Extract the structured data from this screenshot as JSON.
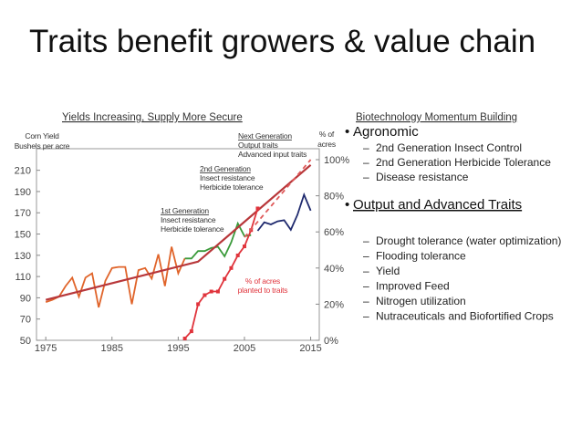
{
  "slide": {
    "title": "Traits benefit growers & value chain",
    "right_title": "Biotechnology Momentum Building",
    "sections": [
      {
        "heading": "Agronomic",
        "items": [
          "2nd Generation Insect Control",
          "2nd Generation Herbicide Tolerance",
          "Disease resistance"
        ]
      },
      {
        "heading": "Output and Advanced Traits",
        "items": [
          "Drought tolerance  (water optimization)",
          "Flooding tolerance",
          "Yield",
          "Improved Feed",
          "Nitrogen utilization",
          "Nutraceuticals and Biofortified Crops"
        ]
      }
    ]
  },
  "chart_data": {
    "type": "line",
    "title": "Yields Increasing, Supply More Secure",
    "ylabel": [
      "Corn Yield",
      "Bushels per acre"
    ],
    "y2label": [
      "% of",
      "acres"
    ],
    "xlim": [
      1973.6,
      2016.3
    ],
    "xticks": [
      1975,
      1985,
      1995,
      2005,
      2015
    ],
    "ylim": [
      50,
      220
    ],
    "yticks": [
      50,
      70,
      90,
      110,
      130,
      150,
      170,
      190,
      210
    ],
    "y2lim": [
      0,
      100
    ],
    "y2ticks": [
      {
        "value": 0,
        "label": "0%"
      },
      {
        "value": 20,
        "label": "20%"
      },
      {
        "value": 40,
        "label": "40%"
      },
      {
        "value": 60,
        "label": "60%"
      },
      {
        "value": 80,
        "label": "80%"
      },
      {
        "value": 100,
        "label": "100%"
      }
    ],
    "series": [
      {
        "color": "#e0642a",
        "x": [
          1975,
          1976,
          1977,
          1978,
          1979,
          1980,
          1981,
          1982,
          1983,
          1984,
          1985,
          1986,
          1987,
          1988,
          1989,
          1990,
          1991,
          1992,
          1993,
          1994,
          1995,
          1996
        ],
        "values": [
          86,
          88,
          91,
          101,
          109,
          91,
          109,
          113,
          81,
          106,
          118,
          119,
          119,
          84,
          116,
          118,
          108,
          131,
          101,
          138,
          113,
          127
        ]
      },
      {
        "color": "#3a9a3a",
        "x": [
          1996,
          1997,
          1998,
          1999,
          2000,
          2001,
          2002,
          2003,
          2004,
          2005,
          2006
        ],
        "values": [
          127,
          127,
          134,
          134,
          137,
          138,
          129,
          142,
          160,
          148,
          149
        ]
      },
      {
        "color": "#1f2a6e",
        "x": [
          2007,
          2008,
          2009,
          2010,
          2011,
          2012,
          2013,
          2014,
          2015
        ],
        "values": [
          153,
          161,
          159,
          162,
          163,
          154,
          168,
          187,
          172
        ]
      },
      {
        "color": "#b8373a",
        "x": [
          1975,
          1998,
          2015
        ],
        "values": [
          88,
          124,
          215
        ]
      },
      {
        "color": "#e0343c",
        "axis": "y2",
        "markers": true,
        "x": [
          1996,
          1997,
          1998,
          1999,
          2000,
          2001,
          2002,
          2003,
          2004,
          2005,
          2006,
          2007
        ],
        "values": [
          1,
          5,
          20,
          25,
          27,
          27,
          34,
          40,
          47,
          52,
          61,
          73
        ]
      },
      {
        "color": "#e05a5a",
        "axis": "y2",
        "dashed": true,
        "x": [
          2005,
          2015
        ],
        "values": [
          57,
          100
        ]
      }
    ],
    "annotations": [
      {
        "lines": [
          "1st Generation",
          "Insect resistance",
          "Herbicide tolerance"
        ],
        "color": "#333"
      },
      {
        "lines": [
          "2nd Generation",
          "Insect resistance",
          "Herbicide tolerance"
        ],
        "color": "#333"
      },
      {
        "lines": [
          "Next Generation",
          "Output traits",
          "Advanced input traits"
        ],
        "color": "#333"
      },
      {
        "lines": [
          "% of acres",
          "planted to traits"
        ],
        "color": "#e0343c"
      }
    ]
  }
}
